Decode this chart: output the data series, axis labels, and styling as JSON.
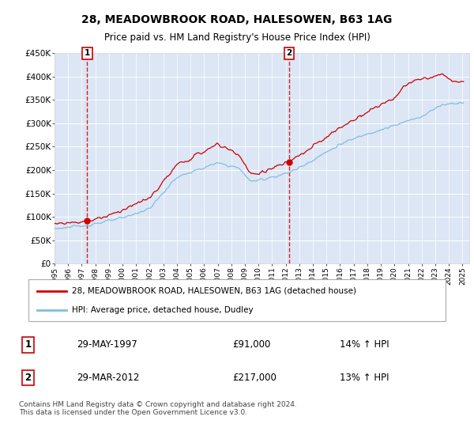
{
  "title": "28, MEADOWBROOK ROAD, HALESOWEN, B63 1AG",
  "subtitle": "Price paid vs. HM Land Registry's House Price Index (HPI)",
  "ylim": [
    0,
    450000
  ],
  "yticks": [
    0,
    50000,
    100000,
    150000,
    200000,
    250000,
    300000,
    350000,
    400000,
    450000
  ],
  "ytick_labels": [
    "£0",
    "£50K",
    "£100K",
    "£150K",
    "£200K",
    "£250K",
    "£300K",
    "£350K",
    "£400K",
    "£450K"
  ],
  "plot_bg_color": "#dce6f5",
  "hpi_color": "#7fbfdf",
  "price_color": "#cc0000",
  "dashed_color": "#cc0000",
  "transaction1_year": 1997.41,
  "transaction1_price": 91000,
  "transaction2_year": 2012.24,
  "transaction2_price": 217000,
  "legend_line1": "28, MEADOWBROOK ROAD, HALESOWEN, B63 1AG (detached house)",
  "legend_line2": "HPI: Average price, detached house, Dudley",
  "table_row1": [
    "1",
    "29-MAY-1997",
    "£91,000",
    "14% ↑ HPI"
  ],
  "table_row2": [
    "2",
    "29-MAR-2012",
    "£217,000",
    "13% ↑ HPI"
  ],
  "footer": "Contains HM Land Registry data © Crown copyright and database right 2024.\nThis data is licensed under the Open Government Licence v3.0.",
  "xlim": [
    1995,
    2025.5
  ],
  "xticks": [
    1995,
    1996,
    1997,
    1998,
    1999,
    2000,
    2001,
    2002,
    2003,
    2004,
    2005,
    2006,
    2007,
    2008,
    2009,
    2010,
    2011,
    2012,
    2013,
    2014,
    2015,
    2016,
    2017,
    2018,
    2019,
    2020,
    2021,
    2022,
    2023,
    2024,
    2025
  ]
}
